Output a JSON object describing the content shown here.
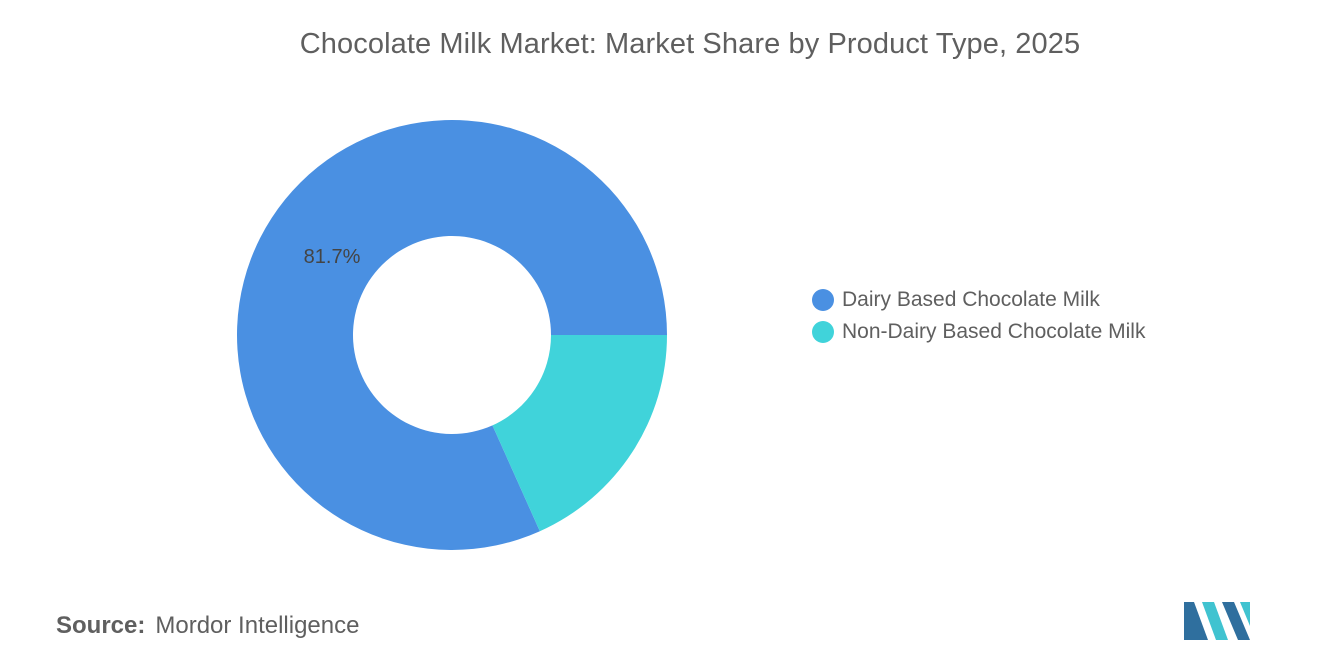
{
  "chart_data": {
    "type": "pie",
    "title": "Chocolate Milk Market: Market Share by Product Type, 2025",
    "categories": [
      "Dairy Based Chocolate Milk",
      "Non-Dairy Based Chocolate Milk"
    ],
    "values": [
      81.7,
      18.3
    ],
    "colors": [
      "#4a90e2",
      "#40d3da"
    ],
    "data_labels": [
      "81.7%",
      ""
    ],
    "legend_position": "right",
    "style": "donut"
  },
  "source": {
    "label": "Source:",
    "text": "Mordor Intelligence"
  },
  "logo": {
    "icon": "mordor-intelligence-logo",
    "colors": [
      "#2f6f9e",
      "#40c3d0"
    ]
  }
}
